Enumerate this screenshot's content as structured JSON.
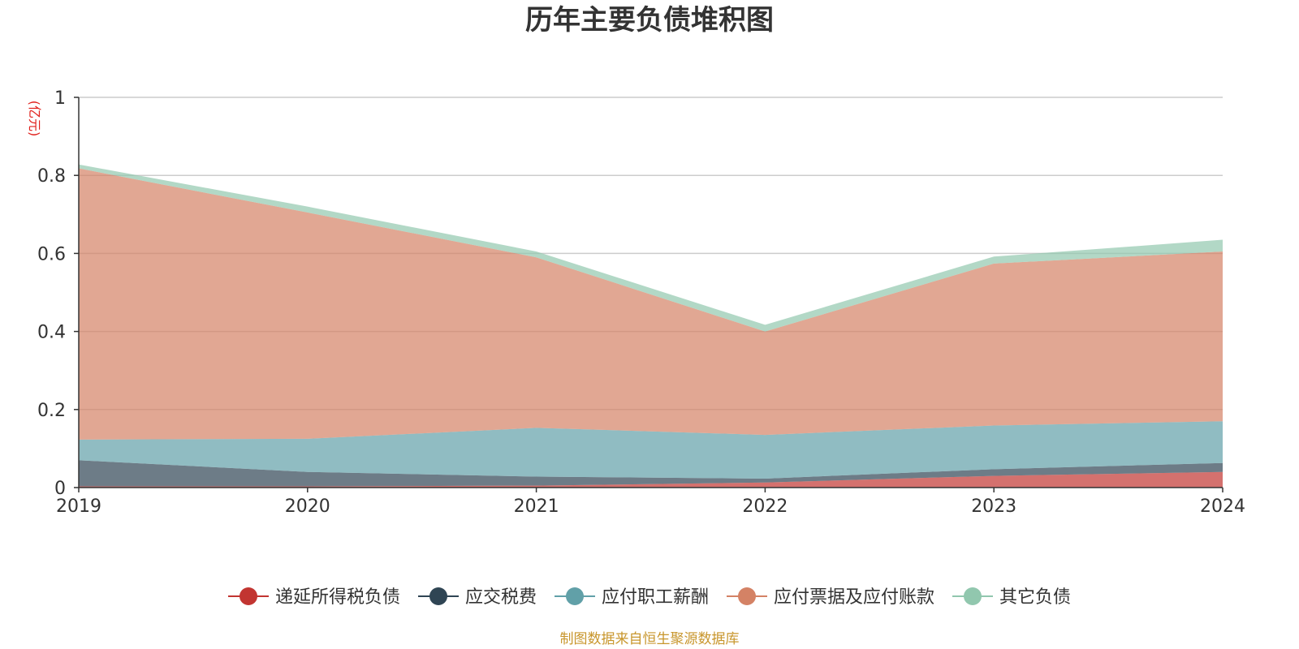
{
  "chart_data": {
    "type": "area",
    "stacked": true,
    "title": "历年主要负债堆积图",
    "unit": "(亿元)",
    "source": "制图数据来自恒生聚源数据库",
    "x": [
      "2019",
      "2020",
      "2021",
      "2022",
      "2023",
      "2024"
    ],
    "yticks": [
      "0",
      "0.2",
      "0.4",
      "0.6",
      "0.8",
      "1"
    ],
    "ylim": [
      0,
      1
    ],
    "grid": true,
    "legend_position": "bottom",
    "series": [
      {
        "name": "递延所得税负债",
        "color": "#c23531",
        "values": [
          0.003,
          0.003,
          0.005,
          0.013,
          0.03,
          0.04
        ]
      },
      {
        "name": "应交税费",
        "color": "#2f4554",
        "values": [
          0.067,
          0.037,
          0.023,
          0.01,
          0.017,
          0.023
        ]
      },
      {
        "name": "应付职工薪酬",
        "color": "#61a0a8",
        "values": [
          0.053,
          0.085,
          0.125,
          0.112,
          0.112,
          0.107
        ]
      },
      {
        "name": "应付票据及应付账款",
        "color": "#d48265",
        "values": [
          0.695,
          0.58,
          0.437,
          0.265,
          0.415,
          0.435
        ]
      },
      {
        "name": "其它负债",
        "color": "#91c7ae",
        "values": [
          0.01,
          0.015,
          0.015,
          0.017,
          0.018,
          0.03
        ]
      }
    ]
  }
}
